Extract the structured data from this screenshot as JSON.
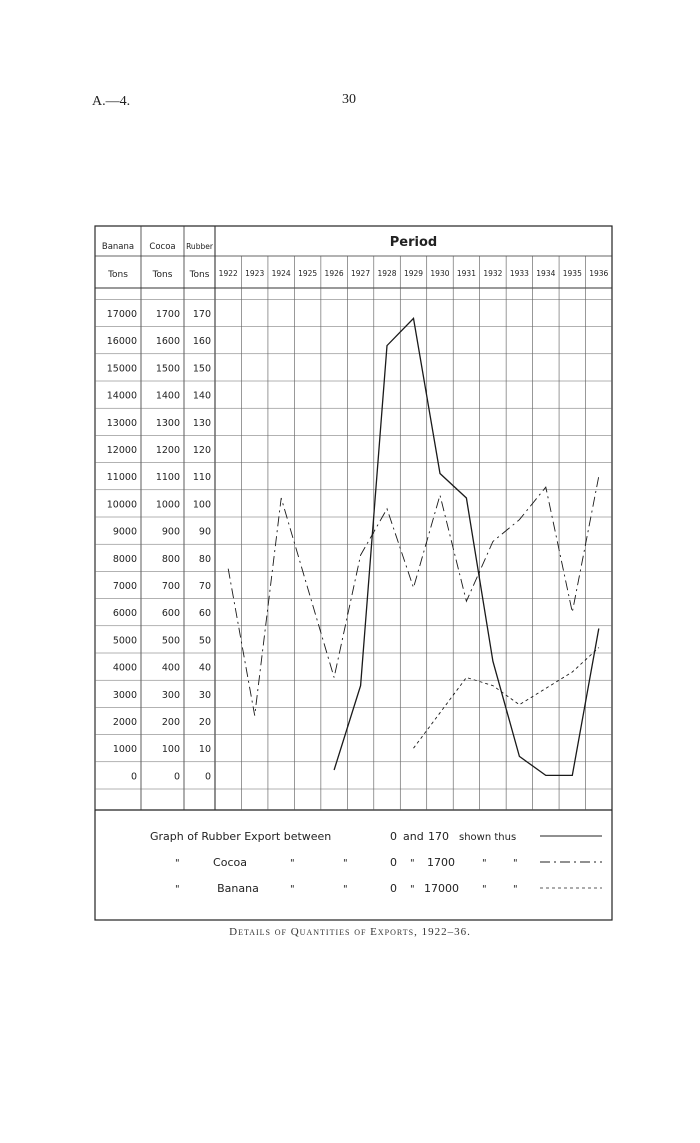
{
  "page": {
    "ref": "A.—4.",
    "number": "30",
    "caption": "Details of Quantities of Exports, 1922–36."
  },
  "chart_data": {
    "type": "line",
    "title": "Period",
    "x": [
      "1922",
      "1923",
      "1924",
      "1925",
      "1926",
      "1927",
      "1928",
      "1929",
      "1930",
      "1931",
      "1932",
      "1933",
      "1934",
      "1935",
      "1936"
    ],
    "axes": [
      {
        "name": "Banana",
        "unit": "Tons",
        "ticks": [
          "17000",
          "16000",
          "15000",
          "14000",
          "13000",
          "12000",
          "11000",
          "10000",
          "9000",
          "8000",
          "7000",
          "6000",
          "5000",
          "4000",
          "3000",
          "2000",
          "1000",
          "0"
        ]
      },
      {
        "name": "Cocoa",
        "unit": "Tons",
        "ticks": [
          "1700",
          "1600",
          "1500",
          "1400",
          "1300",
          "1200",
          "1100",
          "1000",
          "900",
          "800",
          "700",
          "600",
          "500",
          "400",
          "300",
          "200",
          "100",
          "0"
        ]
      },
      {
        "name": "Rubber",
        "unit": "Tons",
        "ticks": [
          "170",
          "160",
          "150",
          "140",
          "130",
          "120",
          "110",
          "100",
          "90",
          "80",
          "70",
          "60",
          "50",
          "40",
          "30",
          "20",
          "10",
          "0"
        ]
      }
    ],
    "ylim_rubber": [
      0,
      170
    ],
    "grid": true,
    "legend_position": "bottom",
    "series": [
      {
        "name": "Rubber",
        "axis": "Rubber",
        "style": "solid",
        "values": [
          null,
          null,
          null,
          null,
          2,
          33,
          158,
          168,
          111,
          102,
          42,
          7,
          0,
          0,
          54
        ]
      },
      {
        "name": "Cocoa",
        "axis": "Cocoa",
        "style": "dash-dot",
        "values": [
          760,
          220,
          1020,
          690,
          360,
          810,
          980,
          690,
          1030,
          640,
          860,
          940,
          1060,
          600,
          1100
        ]
      },
      {
        "name": "Banana",
        "axis": "Banana",
        "style": "dashed",
        "values": [
          null,
          null,
          null,
          null,
          null,
          null,
          null,
          1000,
          2300,
          3600,
          3300,
          2600,
          3200,
          3800,
          4700
        ]
      }
    ],
    "legend": {
      "line1": {
        "text": "Graph of Rubber Export between",
        "range_from": "0",
        "and_word": "and",
        "range_to": "170",
        "tail": "shown thus"
      },
      "line2": {
        "ditto1": "\"",
        "name": "Cocoa",
        "ditto2": "\"",
        "ditto3": "\"",
        "range_from": "0",
        "ditto4": "\"",
        "range_to": "1700",
        "ditto5": "\"",
        "ditto6": "\""
      },
      "line3": {
        "ditto1": "\"",
        "name": "Banana",
        "ditto2": "\"",
        "ditto3": "\"",
        "range_from": "0",
        "ditto4": "\"",
        "range_to": "17000",
        "ditto5": "\"",
        "ditto6": "\""
      }
    }
  }
}
